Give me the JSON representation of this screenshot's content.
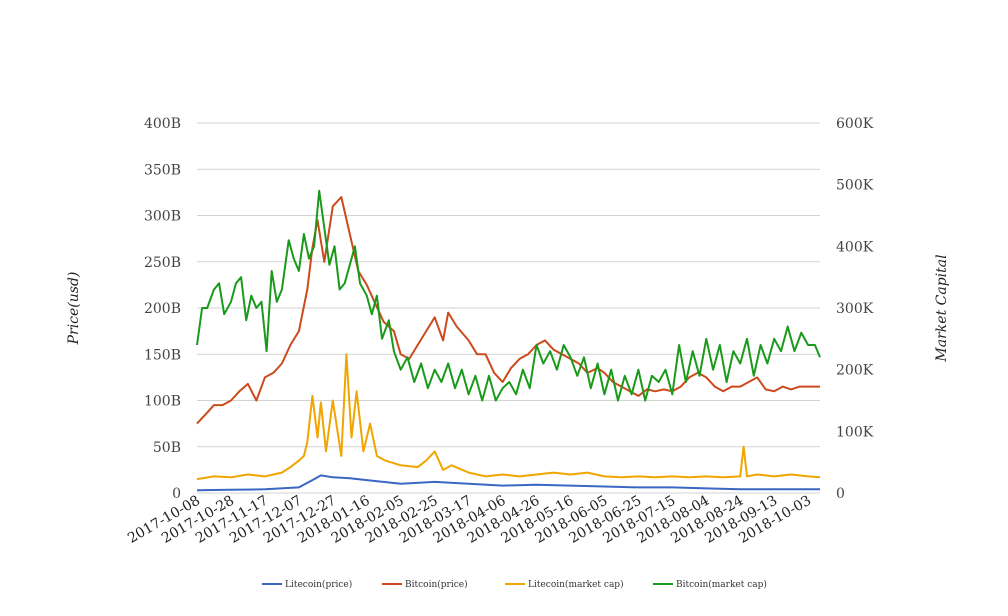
{
  "chart_data": {
    "type": "line",
    "y_left_label": "Price(usd)",
    "y_right_label": "Market Capital",
    "y_left_ticks": [
      "0",
      "50B",
      "100B",
      "150B",
      "200B",
      "250B",
      "300B",
      "350B",
      "400B"
    ],
    "y_left_range": [
      0,
      400
    ],
    "y_right_ticks": [
      "0",
      "100K",
      "200K",
      "300K",
      "400K",
      "500K",
      "600K"
    ],
    "y_right_range": [
      0,
      600
    ],
    "x_ticks": [
      "2017-10-08",
      "2017-10-28",
      "2017-11-17",
      "2017-12-07",
      "2017-12-27",
      "2018-01-16",
      "2018-02-05",
      "2018-02-25",
      "2018-03-17",
      "2018-04-06",
      "2018-04-26",
      "2018-05-16",
      "2018-06-05",
      "2018-06-25",
      "2018-07-15",
      "2018-08-04",
      "2018-08-24",
      "2018-09-13",
      "2018-10-03"
    ],
    "x_range": [
      "2017-10-08",
      "2018-10-10"
    ],
    "grid": true,
    "legend_position": "bottom-center",
    "series": [
      {
        "name": "Litecoin(price)",
        "color": "#3a66c4",
        "axis": "left",
        "x": [
          "2017-10-08",
          "2017-10-28",
          "2017-11-17",
          "2017-12-07",
          "2017-12-15",
          "2017-12-20",
          "2017-12-27",
          "2018-01-06",
          "2018-01-16",
          "2018-02-05",
          "2018-02-25",
          "2018-03-17",
          "2018-04-06",
          "2018-04-26",
          "2018-05-16",
          "2018-06-05",
          "2018-06-25",
          "2018-07-15",
          "2018-08-04",
          "2018-08-24",
          "2018-09-13",
          "2018-10-03",
          "2018-10-10"
        ],
        "values": [
          3,
          3.5,
          4,
          6,
          14,
          19,
          17,
          16,
          14,
          10,
          12,
          10,
          8,
          9,
          8,
          7,
          6,
          6,
          5,
          4,
          4,
          4,
          4
        ]
      },
      {
        "name": "Bitcoin(price)",
        "color": "#cc4a1c",
        "axis": "left",
        "x": [
          "2017-10-08",
          "2017-10-13",
          "2017-10-18",
          "2017-10-23",
          "2017-10-28",
          "2017-11-02",
          "2017-11-07",
          "2017-11-12",
          "2017-11-17",
          "2017-11-22",
          "2017-11-27",
          "2017-12-02",
          "2017-12-07",
          "2017-12-12",
          "2017-12-15",
          "2017-12-18",
          "2017-12-22",
          "2017-12-27",
          "2018-01-01",
          "2018-01-06",
          "2018-01-11",
          "2018-01-16",
          "2018-01-21",
          "2018-01-26",
          "2018-02-01",
          "2018-02-05",
          "2018-02-10",
          "2018-02-15",
          "2018-02-20",
          "2018-02-25",
          "2018-03-02",
          "2018-03-05",
          "2018-03-10",
          "2018-03-17",
          "2018-03-22",
          "2018-03-27",
          "2018-04-01",
          "2018-04-06",
          "2018-04-11",
          "2018-04-16",
          "2018-04-21",
          "2018-04-26",
          "2018-05-01",
          "2018-05-06",
          "2018-05-11",
          "2018-05-16",
          "2018-05-21",
          "2018-05-26",
          "2018-06-01",
          "2018-06-05",
          "2018-06-10",
          "2018-06-15",
          "2018-06-20",
          "2018-06-25",
          "2018-06-30",
          "2018-07-05",
          "2018-07-10",
          "2018-07-15",
          "2018-07-20",
          "2018-07-25",
          "2018-07-30",
          "2018-08-04",
          "2018-08-09",
          "2018-08-14",
          "2018-08-19",
          "2018-08-24",
          "2018-08-29",
          "2018-09-03",
          "2018-09-08",
          "2018-09-13",
          "2018-09-18",
          "2018-09-23",
          "2018-09-28",
          "2018-10-03",
          "2018-10-10"
        ],
        "values": [
          75,
          85,
          95,
          95,
          100,
          110,
          118,
          100,
          125,
          130,
          140,
          160,
          175,
          220,
          265,
          295,
          250,
          310,
          320,
          280,
          240,
          225,
          205,
          185,
          175,
          150,
          145,
          160,
          175,
          190,
          165,
          195,
          180,
          165,
          150,
          150,
          130,
          120,
          135,
          145,
          150,
          160,
          165,
          155,
          150,
          145,
          140,
          130,
          135,
          130,
          120,
          115,
          110,
          105,
          112,
          110,
          112,
          110,
          115,
          125,
          130,
          125,
          115,
          110,
          115,
          115,
          120,
          125,
          112,
          110,
          115,
          112,
          115,
          115,
          115
        ]
      },
      {
        "name": "Litecoin(market cap)",
        "color": "#f0a500",
        "axis": "left",
        "x": [
          "2017-10-08",
          "2017-10-18",
          "2017-10-28",
          "2017-11-07",
          "2017-11-17",
          "2017-11-27",
          "2017-12-02",
          "2017-12-07",
          "2017-12-10",
          "2017-12-12",
          "2017-12-15",
          "2017-12-18",
          "2017-12-20",
          "2017-12-23",
          "2017-12-27",
          "2018-01-01",
          "2018-01-04",
          "2018-01-07",
          "2018-01-10",
          "2018-01-14",
          "2018-01-18",
          "2018-01-22",
          "2018-01-27",
          "2018-02-05",
          "2018-02-15",
          "2018-02-20",
          "2018-02-25",
          "2018-03-02",
          "2018-03-07",
          "2018-03-17",
          "2018-03-27",
          "2018-04-06",
          "2018-04-16",
          "2018-04-26",
          "2018-05-06",
          "2018-05-16",
          "2018-05-26",
          "2018-06-05",
          "2018-06-15",
          "2018-06-25",
          "2018-07-05",
          "2018-07-15",
          "2018-07-25",
          "2018-08-04",
          "2018-08-14",
          "2018-08-24",
          "2018-08-26",
          "2018-08-28",
          "2018-09-03",
          "2018-09-13",
          "2018-09-23",
          "2018-10-03",
          "2018-10-10"
        ],
        "values": [
          15,
          18,
          17,
          20,
          18,
          22,
          28,
          35,
          40,
          55,
          105,
          60,
          98,
          45,
          100,
          40,
          150,
          60,
          110,
          45,
          75,
          40,
          35,
          30,
          28,
          35,
          45,
          25,
          30,
          22,
          18,
          20,
          18,
          20,
          22,
          20,
          22,
          18,
          17,
          18,
          17,
          18,
          17,
          18,
          17,
          18,
          50,
          18,
          20,
          18,
          20,
          18,
          17
        ]
      },
      {
        "name": "Bitcoin(market cap)",
        "color": "#1a9a1a",
        "axis": "right",
        "x": [
          "2017-10-08",
          "2017-10-11",
          "2017-10-14",
          "2017-10-18",
          "2017-10-21",
          "2017-10-24",
          "2017-10-28",
          "2017-10-31",
          "2017-11-03",
          "2017-11-06",
          "2017-11-09",
          "2017-11-12",
          "2017-11-15",
          "2017-11-18",
          "2017-11-21",
          "2017-11-24",
          "2017-11-27",
          "2017-12-01",
          "2017-12-04",
          "2017-12-07",
          "2017-12-10",
          "2017-12-13",
          "2017-12-16",
          "2017-12-19",
          "2017-12-22",
          "2017-12-25",
          "2017-12-28",
          "2017-12-31",
          "2018-01-03",
          "2018-01-06",
          "2018-01-09",
          "2018-01-12",
          "2018-01-16",
          "2018-01-19",
          "2018-01-22",
          "2018-01-25",
          "2018-01-29",
          "2018-02-01",
          "2018-02-05",
          "2018-02-09",
          "2018-02-13",
          "2018-02-17",
          "2018-02-21",
          "2018-02-25",
          "2018-03-01",
          "2018-03-05",
          "2018-03-09",
          "2018-03-13",
          "2018-03-17",
          "2018-03-21",
          "2018-03-25",
          "2018-03-29",
          "2018-04-02",
          "2018-04-06",
          "2018-04-10",
          "2018-04-14",
          "2018-04-18",
          "2018-04-22",
          "2018-04-26",
          "2018-04-30",
          "2018-05-04",
          "2018-05-08",
          "2018-05-12",
          "2018-05-16",
          "2018-05-20",
          "2018-05-24",
          "2018-05-28",
          "2018-06-01",
          "2018-06-05",
          "2018-06-09",
          "2018-06-13",
          "2018-06-17",
          "2018-06-21",
          "2018-06-25",
          "2018-06-29",
          "2018-07-03",
          "2018-07-07",
          "2018-07-11",
          "2018-07-15",
          "2018-07-19",
          "2018-07-23",
          "2018-07-27",
          "2018-07-31",
          "2018-08-04",
          "2018-08-08",
          "2018-08-12",
          "2018-08-16",
          "2018-08-20",
          "2018-08-24",
          "2018-08-28",
          "2018-09-01",
          "2018-09-05",
          "2018-09-09",
          "2018-09-13",
          "2018-09-17",
          "2018-09-21",
          "2018-09-25",
          "2018-09-29",
          "2018-10-03",
          "2018-10-07",
          "2018-10-10"
        ],
        "values": [
          240,
          300,
          300,
          330,
          340,
          290,
          310,
          340,
          350,
          280,
          320,
          300,
          310,
          230,
          360,
          310,
          330,
          410,
          380,
          360,
          420,
          380,
          400,
          490,
          430,
          370,
          400,
          330,
          340,
          370,
          400,
          340,
          320,
          290,
          320,
          250,
          280,
          230,
          200,
          220,
          180,
          210,
          170,
          200,
          180,
          210,
          170,
          200,
          160,
          190,
          150,
          190,
          150,
          170,
          180,
          160,
          200,
          170,
          240,
          210,
          230,
          200,
          240,
          220,
          190,
          220,
          170,
          210,
          160,
          200,
          150,
          190,
          160,
          200,
          150,
          190,
          180,
          200,
          160,
          240,
          180,
          230,
          190,
          250,
          200,
          240,
          180,
          230,
          210,
          250,
          190,
          240,
          210,
          250,
          230,
          270,
          230,
          260,
          240,
          240,
          220
        ]
      }
    ]
  }
}
